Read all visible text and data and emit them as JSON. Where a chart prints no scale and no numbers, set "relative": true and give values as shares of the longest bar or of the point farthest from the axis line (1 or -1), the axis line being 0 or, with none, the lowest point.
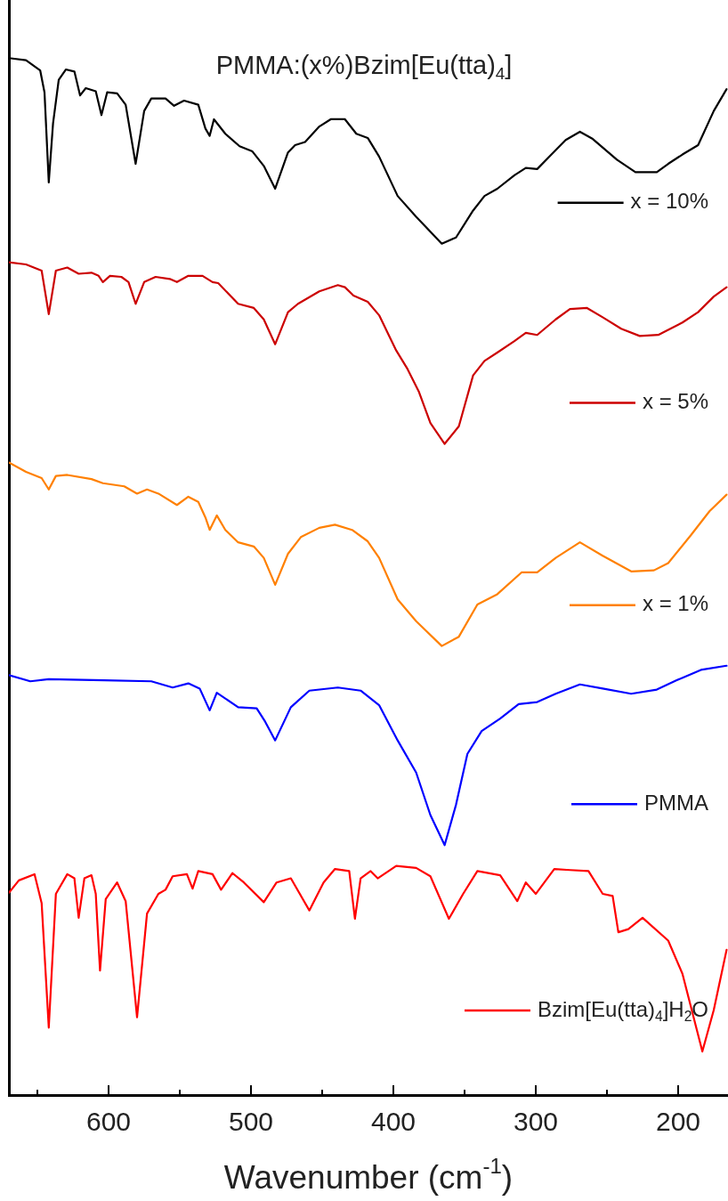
{
  "chart_data": {
    "type": "line",
    "title": "PMMA:(x%)Bzim[Eu(tta)$_{4}$]",
    "xlabel": "Wavenumber (cm$^{-1}$)",
    "xlim": [
      670,
      165
    ],
    "xticks": [
      {
        "value": 650,
        "label": null
      },
      600,
      {
        "value": 550,
        "label": null
      },
      500,
      {
        "value": 450,
        "label": null
      },
      400,
      {
        "value": 350,
        "label": null
      },
      300,
      {
        "value": 250,
        "label": null
      },
      200
    ],
    "relative": true,
    "legend": "right",
    "series": [
      {
        "name": "x = 10%",
        "color": "#000000",
        "x": [
          670,
          658,
          648,
          645,
          642,
          639,
          635,
          630,
          624,
          620,
          616,
          609,
          605,
          601,
          594,
          588,
          581,
          575,
          570,
          560,
          554,
          547,
          537,
          532,
          529,
          526,
          518,
          508,
          499,
          491,
          483,
          474,
          469,
          462,
          452,
          444,
          434,
          426,
          418,
          410,
          397,
          384,
          366,
          356,
          344,
          336,
          327,
          315,
          307,
          299,
          289,
          279,
          269,
          260,
          243,
          230,
          215,
          207,
          197,
          186,
          175,
          166
        ],
        "values": [
          1.0,
          0.998,
          0.988,
          0.967,
          0.88,
          0.937,
          0.979,
          0.989,
          0.987,
          0.964,
          0.971,
          0.968,
          0.945,
          0.967,
          0.966,
          0.955,
          0.898,
          0.949,
          0.961,
          0.961,
          0.954,
          0.959,
          0.955,
          0.932,
          0.925,
          0.941,
          0.927,
          0.915,
          0.91,
          0.896,
          0.874,
          0.909,
          0.916,
          0.919,
          0.934,
          0.941,
          0.941,
          0.927,
          0.923,
          0.905,
          0.867,
          0.847,
          0.821,
          0.827,
          0.853,
          0.867,
          0.874,
          0.887,
          0.894,
          0.893,
          0.907,
          0.921,
          0.929,
          0.922,
          0.902,
          0.89,
          0.89,
          0.898,
          0.907,
          0.916,
          0.949,
          0.97
        ]
      },
      {
        "name": "x = 5%",
        "color": "#cc0000",
        "x": [
          670,
          658,
          647,
          642,
          637,
          629,
          621,
          612,
          607,
          604,
          599,
          591,
          586,
          581,
          575,
          567,
          557,
          552,
          544,
          534,
          527,
          523,
          509,
          498,
          491,
          483,
          474,
          467,
          452,
          439,
          434,
          428,
          418,
          410,
          398,
          390,
          382,
          374,
          364,
          354,
          344,
          336,
          327,
          315,
          307,
          299,
          286,
          276,
          264,
          253,
          240,
          227,
          214,
          197,
          186,
          175,
          166
        ],
        "values": [
          0.803,
          0.801,
          0.795,
          0.753,
          0.795,
          0.798,
          0.792,
          0.793,
          0.79,
          0.784,
          0.79,
          0.789,
          0.784,
          0.763,
          0.784,
          0.789,
          0.787,
          0.784,
          0.79,
          0.79,
          0.784,
          0.783,
          0.763,
          0.759,
          0.748,
          0.724,
          0.755,
          0.763,
          0.775,
          0.781,
          0.779,
          0.771,
          0.765,
          0.752,
          0.718,
          0.7,
          0.678,
          0.648,
          0.628,
          0.645,
          0.694,
          0.708,
          0.716,
          0.727,
          0.735,
          0.733,
          0.748,
          0.758,
          0.759,
          0.75,
          0.739,
          0.732,
          0.733,
          0.745,
          0.755,
          0.77,
          0.779
        ]
      },
      {
        "name": "x = 1%",
        "color": "#ff8000",
        "x": [
          670,
          658,
          647,
          642,
          637,
          629,
          612,
          604,
          589,
          580,
          573,
          565,
          552,
          544,
          537,
          532,
          529,
          524,
          518,
          509,
          498,
          491,
          483,
          474,
          465,
          452,
          441,
          429,
          418,
          410,
          397,
          384,
          366,
          354,
          341,
          327,
          310,
          299,
          286,
          269,
          253,
          233,
          217,
          207,
          191,
          178,
          166
        ],
        "values": [
          0.61,
          0.601,
          0.595,
          0.584,
          0.597,
          0.598,
          0.594,
          0.59,
          0.587,
          0.58,
          0.584,
          0.58,
          0.569,
          0.577,
          0.572,
          0.557,
          0.545,
          0.559,
          0.545,
          0.533,
          0.529,
          0.518,
          0.492,
          0.522,
          0.538,
          0.547,
          0.55,
          0.545,
          0.534,
          0.518,
          0.478,
          0.457,
          0.433,
          0.442,
          0.473,
          0.483,
          0.504,
          0.504,
          0.518,
          0.533,
          0.52,
          0.505,
          0.506,
          0.513,
          0.54,
          0.563,
          0.579
        ]
      },
      {
        "name": "PMMA",
        "color": "#0000ff",
        "x": [
          670,
          655,
          642,
          603,
          570,
          555,
          544,
          536,
          529,
          524,
          509,
          496,
          490,
          483,
          472,
          459,
          439,
          423,
          410,
          397,
          384,
          374,
          364,
          356,
          348,
          338,
          325,
          312,
          299,
          286,
          269,
          253,
          233,
          215,
          201,
          184,
          166
        ],
        "values": [
          0.405,
          0.399,
          0.401,
          0.4,
          0.399,
          0.393,
          0.397,
          0.392,
          0.371,
          0.388,
          0.374,
          0.373,
          0.36,
          0.342,
          0.374,
          0.39,
          0.393,
          0.39,
          0.376,
          0.342,
          0.311,
          0.27,
          0.241,
          0.28,
          0.329,
          0.351,
          0.363,
          0.377,
          0.379,
          0.387,
          0.396,
          0.392,
          0.387,
          0.391,
          0.4,
          0.41,
          0.414
        ]
      },
      {
        "name": "Bzim[Eu(tta)$_{4}$]H$_{2}$O",
        "color": "#ff0000",
        "x": [
          670,
          663,
          652,
          647,
          642,
          637,
          629,
          624,
          621,
          617,
          612,
          609,
          606,
          602,
          594,
          588,
          580,
          573,
          565,
          560,
          555,
          545,
          541,
          537,
          527,
          521,
          513,
          505,
          491,
          482,
          472,
          459,
          449,
          441,
          431,
          427,
          423,
          416,
          411,
          398,
          384,
          374,
          361,
          351,
          341,
          325,
          313,
          307,
          300,
          287,
          276,
          263,
          253,
          246,
          242,
          235,
          225,
          207,
          197,
          183,
          175,
          166
        ],
        "values": [
          0.195,
          0.207,
          0.213,
          0.185,
          0.065,
          0.194,
          0.213,
          0.209,
          0.171,
          0.209,
          0.212,
          0.194,
          0.12,
          0.189,
          0.205,
          0.187,
          0.075,
          0.175,
          0.194,
          0.198,
          0.211,
          0.213,
          0.199,
          0.216,
          0.213,
          0.198,
          0.214,
          0.205,
          0.186,
          0.205,
          0.209,
          0.178,
          0.205,
          0.218,
          0.216,
          0.17,
          0.209,
          0.216,
          0.209,
          0.221,
          0.219,
          0.211,
          0.17,
          0.194,
          0.216,
          0.212,
          0.187,
          0.205,
          0.194,
          0.218,
          0.217,
          0.216,
          0.194,
          0.192,
          0.157,
          0.16,
          0.171,
          0.149,
          0.117,
          0.042,
          0.082,
          0.14
        ]
      }
    ]
  }
}
